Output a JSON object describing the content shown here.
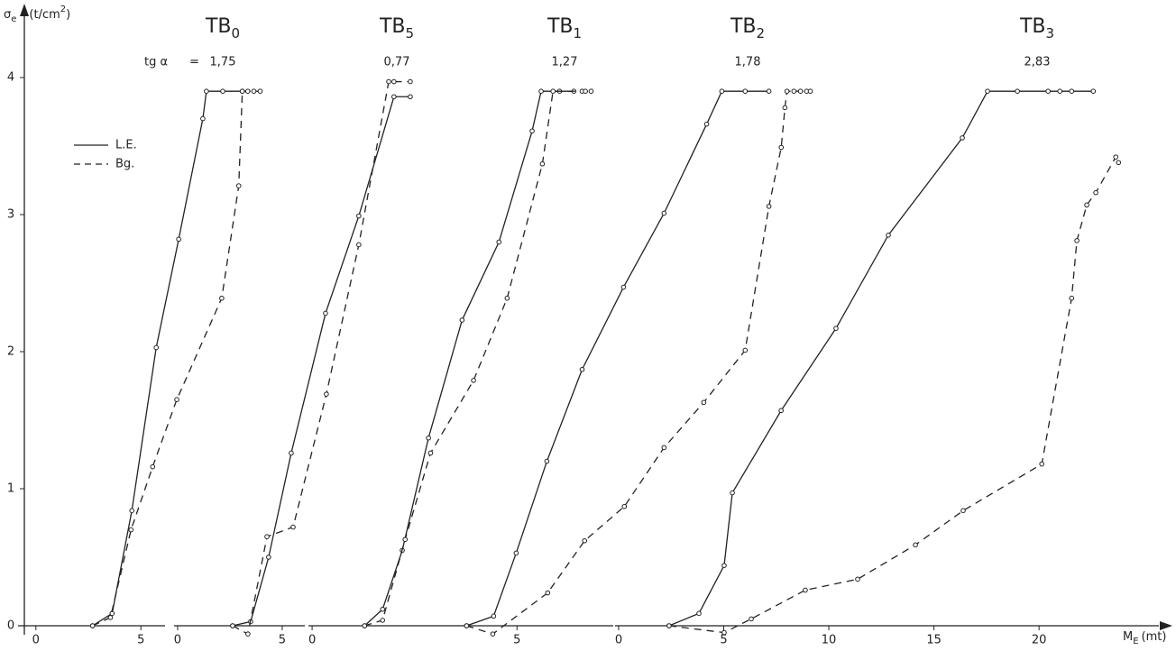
{
  "chart_data": {
    "type": "line",
    "y_label": "σ",
    "y_label_sub": "e",
    "y_unit": "(t/cm",
    "y_unit_sup": "2",
    "y_unit_end": ")",
    "x_label": "M",
    "x_label_sub": "E",
    "x_unit": "(mt)",
    "tg_label": "tg α",
    "tg_eq": "=",
    "ylim": [
      0,
      4.5
    ],
    "yticks": [
      0,
      1,
      2,
      3,
      4
    ],
    "legend": [
      {
        "name": "L.E.",
        "dashed": false
      },
      {
        "name": "Bg.",
        "dashed": true
      }
    ],
    "color": "#222222",
    "axes": [
      {
        "xlim": [
          -0.85,
          6.15
        ],
        "xticks": [
          0,
          5
        ],
        "panels": [
          {
            "title": "TB",
            "title_sub": "0",
            "tg": {
              "value": 1.75,
              "label": "1,75"
            },
            "series": [
              {
                "x": [
                  2.7,
                  3.63,
                  4.57,
                  5.73,
                  6.8,
                  7.95,
                  8.12,
                  8.9,
                  9.83
                ],
                "values": [
                  0,
                  0.09,
                  0.84,
                  2.03,
                  2.82,
                  3.7,
                  3.9,
                  3.9,
                  3.9
                ]
              },
              {
                "x": [
                  2.7,
                  3.55,
                  4.53,
                  5.56,
                  6.71,
                  8.85,
                  9.66,
                  9.83,
                  10.09,
                  10.38,
                  10.68
                ],
                "values": [
                  0,
                  0.06,
                  0.7,
                  1.16,
                  1.65,
                  2.39,
                  3.21,
                  3.9,
                  3.9,
                  3.9,
                  3.9
                ]
              }
            ]
          }
        ]
      },
      {
        "xlim": [
          -0.17,
          6.08
        ],
        "xticks": [
          0,
          5
        ],
        "panels": [
          {
            "title": "TB",
            "title_sub": "5",
            "tg": {
              "value": 0.77,
              "label": "0,77"
            },
            "series": [
              {
                "x": [
                  2.63,
                  3.49,
                  4.35,
                  5.43,
                  7.07,
                  8.66,
                  10.34,
                  11.12
                ],
                "values": [
                  0,
                  0.03,
                  0.5,
                  1.26,
                  2.28,
                  2.99,
                  3.86,
                  3.86
                ]
              },
              {
                "x": [
                  2.63,
                  3.36,
                  4.27,
                  5.52,
                  7.11,
                  8.66,
                  10.09,
                  10.34,
                  11.12
                ],
                "values": [
                  0,
                  -0.06,
                  0.65,
                  0.72,
                  1.69,
                  2.78,
                  3.97,
                  3.97,
                  3.97
                ]
              }
            ]
          }
        ]
      },
      {
        "xlim": [
          -0.09,
          7.35
        ],
        "xticks": [
          0,
          5
        ],
        "panels": [
          {
            "title": "TB",
            "title_sub": "1",
            "tg": {
              "value": 1.27,
              "label": "1,27"
            },
            "series": [
              {
                "x": [
                  1.28,
                  1.72,
                  2.2,
                  2.84,
                  3.66,
                  4.56,
                  5.37,
                  5.59,
                  6.04,
                  6.39
                ],
                "values": [
                  0,
                  0.12,
                  0.55,
                  1.37,
                  2.23,
                  2.8,
                  3.61,
                  3.9,
                  3.9,
                  3.9
                ]
              },
              {
                "x": [
                  1.28,
                  1.72,
                  2.27,
                  2.89,
                  3.94,
                  4.76,
                  5.62,
                  5.88,
                  6.59,
                  6.67,
                  6.81
                ],
                "values": [
                  0,
                  0.04,
                  0.63,
                  1.26,
                  1.79,
                  2.39,
                  3.37,
                  3.9,
                  3.9,
                  3.9,
                  3.9
                ]
              }
            ]
          },
          {
            "title": "TB",
            "title_sub": "2",
            "tg": {
              "value": 1.78,
              "label": "1,78"
            },
            "series": [
              {
                "x": [
                  3.77,
                  4.43,
                  4.98,
                  5.73,
                  6.59,
                  7.6,
                  8.59,
                  9.63,
                  10.0,
                  10.57,
                  11.15
                ],
                "values": [
                  0,
                  0.07,
                  0.53,
                  1.2,
                  1.87,
                  2.47,
                  3.01,
                  3.66,
                  3.9,
                  3.9,
                  3.9
                ]
              },
              {
                "x": [
                  3.77,
                  4.41,
                  5.75,
                  6.65,
                  7.62,
                  8.59,
                  9.56,
                  10.57,
                  11.15,
                  11.45,
                  11.54,
                  11.59,
                  11.76,
                  11.92,
                  12.07,
                  12.16
                ],
                "values": [
                  0,
                  -0.06,
                  0.24,
                  0.62,
                  0.87,
                  1.3,
                  1.63,
                  2.01,
                  3.06,
                  3.49,
                  3.78,
                  3.9,
                  3.9,
                  3.9,
                  3.9,
                  3.9
                ]
              }
            ]
          }
        ]
      },
      {
        "xlim": [
          -0.17,
          25.7
        ],
        "xticks": [
          0,
          5,
          10,
          15,
          20
        ],
        "panels": [
          {
            "title": "TB",
            "title_sub": "3",
            "tg": {
              "value": 2.83,
              "label": "2,83"
            },
            "series": [
              {
                "x": [
                  2.4,
                  3.82,
                  5.02,
                  5.41,
                  7.73,
                  10.34,
                  12.83,
                  16.35,
                  17.55,
                  18.97,
                  20.43,
                  20.99,
                  21.55,
                  22.58
                ],
                "values": [
                  0,
                  0.09,
                  0.44,
                  0.97,
                  1.57,
                  2.17,
                  2.85,
                  3.56,
                  3.9,
                  3.9,
                  3.9,
                  3.9,
                  3.9,
                  3.9
                ]
              },
              {
                "x": [
                  2.4,
                  5.02,
                  6.31,
                  8.88,
                  11.37,
                  14.12,
                  16.39,
                  20.13,
                  21.55,
                  21.8,
                  22.27,
                  22.7,
                  23.65,
                  23.78
                ],
                "values": [
                  0,
                  -0.05,
                  0.05,
                  0.26,
                  0.34,
                  0.59,
                  0.84,
                  1.18,
                  2.39,
                  2.81,
                  3.07,
                  3.16,
                  3.42,
                  3.38
                ]
              }
            ]
          }
        ]
      }
    ]
  }
}
